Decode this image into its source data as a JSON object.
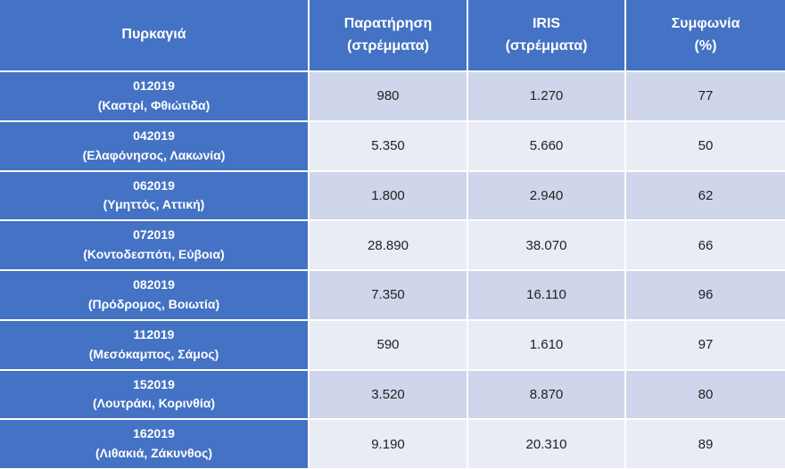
{
  "table": {
    "header": [
      [
        "Πυρκαγιά"
      ],
      [
        "Παρατήρηση",
        "(στρέμματα)"
      ],
      [
        "IRIS",
        "(στρέμματα)"
      ],
      [
        "Συμφωνία",
        "(%)"
      ]
    ],
    "rows": [
      [
        [
          "012019",
          "(Καστρί, Φθιώτιδα)"
        ],
        "980",
        "1.270",
        "77"
      ],
      [
        [
          "042019",
          "(Ελαφόνησος, Λακωνία)"
        ],
        "5.350",
        "5.660",
        "50"
      ],
      [
        [
          "062019",
          "(Υμηττός, Αττική)"
        ],
        "1.800",
        "2.940",
        "62"
      ],
      [
        [
          "072019",
          "(Κοντοδεσπότι, Εύβοια)"
        ],
        "28.890",
        "38.070",
        "66"
      ],
      [
        [
          "082019",
          "(Πρόδρομος, Βοιωτία)"
        ],
        "7.350",
        "16.110",
        "96"
      ],
      [
        [
          "112019",
          "(Μεσόκαμπος, Σάμος)"
        ],
        "590",
        "1.610",
        "97"
      ],
      [
        [
          "152019",
          "(Λουτράκι, Κορινθία)"
        ],
        "3.520",
        "8.870",
        "80"
      ],
      [
        [
          "162019",
          "(Λιθακιά, Ζάκυνθος)"
        ],
        "9.190",
        "20.310",
        "89"
      ]
    ]
  }
}
